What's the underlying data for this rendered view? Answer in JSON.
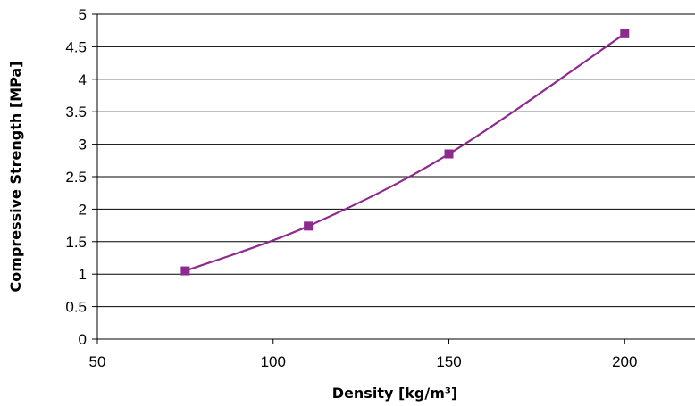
{
  "chart_data": {
    "type": "line",
    "title": "",
    "xlabel": "Density [kg/m³]",
    "ylabel": "Compressive Strength [MPa]",
    "xlim": [
      50,
      220
    ],
    "ylim": [
      0,
      5
    ],
    "x_ticks": [
      "50",
      "100",
      "150",
      "200"
    ],
    "y_ticks": [
      "0",
      "0.5",
      "1",
      "1.5",
      "2",
      "2.5",
      "3",
      "3.5",
      "4",
      "4.5",
      "5"
    ],
    "grid": "horizontal",
    "legend": "none",
    "series": [
      {
        "x": [
          75,
          110,
          150,
          200
        ],
        "y": [
          1.05,
          1.74,
          2.85,
          4.7
        ],
        "color": "#8e2a8e",
        "marker": "square",
        "smooth": true
      }
    ]
  }
}
